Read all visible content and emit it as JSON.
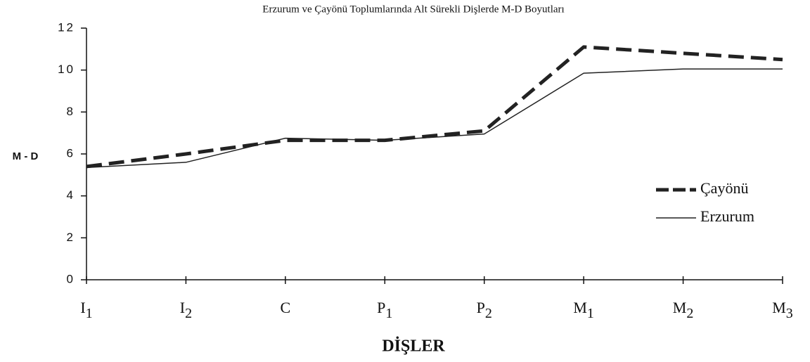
{
  "chart_data": {
    "type": "line",
    "title": "Erzurum ve Çayönü Toplumlarında Alt Sürekli Dişlerde M-D Boyutları",
    "x_label": "DİŞLER",
    "y_label": "M - D",
    "categories": [
      "I1",
      "I2",
      "C",
      "P1",
      "P2",
      "M1",
      "M2",
      "M3"
    ],
    "series": [
      {
        "name": "Çayönü",
        "color": "#222222",
        "dash": true,
        "values": [
          5.4,
          6.0,
          6.65,
          6.65,
          7.1,
          11.1,
          10.8,
          10.5
        ]
      },
      {
        "name": "Erzurum",
        "color": "#222222",
        "dash": false,
        "values": [
          5.35,
          5.6,
          6.75,
          6.65,
          6.95,
          9.85,
          10.05,
          10.05
        ]
      }
    ],
    "ylim": [
      0,
      12
    ],
    "yticks": [
      0,
      2,
      4,
      6,
      8,
      10,
      12
    ],
    "grid": false,
    "legend": "right"
  }
}
